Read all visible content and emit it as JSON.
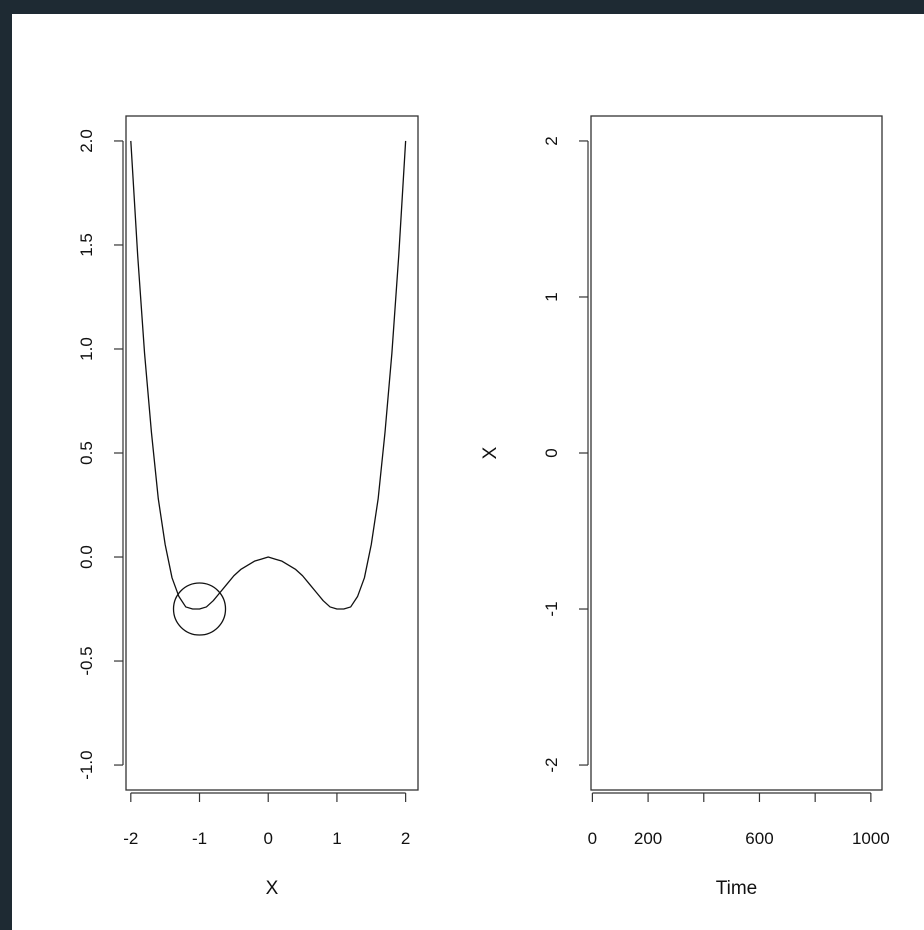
{
  "chart_data": [
    {
      "type": "line",
      "xlabel": "X",
      "ylabel": "",
      "xlim": [
        -2.07,
        2.18
      ],
      "ylim": [
        -1.12,
        2.12
      ],
      "xticks": [
        -2,
        -1,
        0,
        1,
        2
      ],
      "yticks": [
        -1.0,
        -0.5,
        0.0,
        0.5,
        1.0,
        1.5,
        2.0
      ],
      "xtick_labels": [
        "-2",
        "-1",
        "0",
        "1",
        "2"
      ],
      "ytick_labels": [
        "-1.0",
        "-0.5",
        "0.0",
        "0.5",
        "1.0",
        "1.5",
        "2.0"
      ],
      "series": [
        {
          "x": [
            -2.0,
            -1.9,
            -1.8,
            -1.7,
            -1.6,
            -1.5,
            -1.4,
            -1.3,
            -1.2,
            -1.1,
            -1.0,
            -0.9,
            -0.8,
            -0.7,
            -0.6,
            -0.5,
            -0.4,
            -0.3,
            -0.2,
            -0.1,
            0.0,
            0.1,
            0.2,
            0.3,
            0.4,
            0.5,
            0.6,
            0.7,
            0.8,
            0.9,
            1.0,
            1.1,
            1.2,
            1.3,
            1.4,
            1.5,
            1.6,
            1.7,
            1.8,
            1.9,
            2.0
          ],
          "y": [
            2.0,
            1.45,
            0.98,
            0.6,
            0.28,
            0.06,
            -0.1,
            -0.19,
            -0.24,
            -0.25,
            -0.25,
            -0.24,
            -0.21,
            -0.17,
            -0.13,
            -0.09,
            -0.06,
            -0.04,
            -0.02,
            -0.01,
            0.0,
            -0.01,
            -0.02,
            -0.04,
            -0.06,
            -0.09,
            -0.13,
            -0.17,
            -0.21,
            -0.24,
            -0.25,
            -0.25,
            -0.24,
            -0.19,
            -0.1,
            0.06,
            0.28,
            0.6,
            0.98,
            1.45,
            2.0
          ]
        }
      ],
      "marker": {
        "shape": "circle",
        "x": -1.0,
        "y": -0.25
      }
    },
    {
      "type": "line",
      "xlabel": "Time",
      "ylabel": "X",
      "xlim": [
        -5,
        1040
      ],
      "ylim": [
        -2.16,
        2.16
      ],
      "xticks": [
        0,
        200,
        400,
        600,
        800,
        1000
      ],
      "yticks": [
        -2,
        -1,
        0,
        1,
        2
      ],
      "xtick_labels": [
        "0",
        "200",
        "",
        "600",
        "",
        "1000"
      ],
      "ytick_labels": [
        "-2",
        "-1",
        "0",
        "1",
        "2"
      ],
      "series": []
    }
  ]
}
